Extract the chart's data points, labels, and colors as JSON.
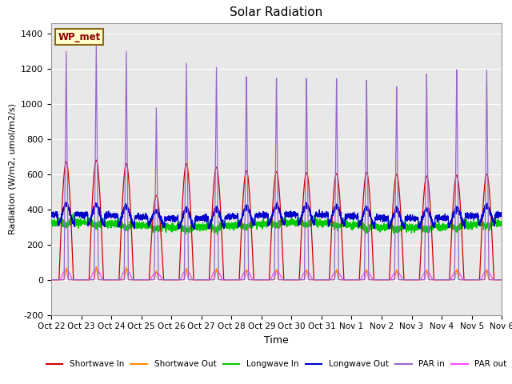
{
  "title": "Solar Radiation",
  "ylabel": "Radiation (W/m2, umol/m2/s)",
  "xlabel": "Time",
  "ylim": [
    -200,
    1460
  ],
  "yticks": [
    -200,
    0,
    200,
    400,
    600,
    800,
    1000,
    1200,
    1400
  ],
  "xtick_labels": [
    "Oct 22",
    "Oct 23",
    "Oct 24",
    "Oct 25",
    "Oct 26",
    "Oct 27",
    "Oct 28",
    "Oct 29",
    "Oct 30",
    "Oct 31",
    "Nov 1",
    "Nov 2",
    "Nov 3",
    "Nov 4",
    "Nov 5",
    "Nov 6"
  ],
  "bg_color": "#e8e8e8",
  "annotation_label": "WP_met",
  "annotation_bg": "#ffffcc",
  "annotation_border": "#8b6914",
  "series": {
    "shortwave_in": {
      "color": "#cc0000",
      "label": "Shortwave In"
    },
    "shortwave_out": {
      "color": "#ff8800",
      "label": "Shortwave Out"
    },
    "longwave_in": {
      "color": "#00cc00",
      "label": "Longwave In"
    },
    "longwave_out": {
      "color": "#0000cc",
      "label": "Longwave Out"
    },
    "par_in": {
      "color": "#9966cc",
      "label": "PAR in"
    },
    "par_out": {
      "color": "#ff44ff",
      "label": "PAR out"
    }
  },
  "n_days": 15,
  "shortwave_in_peaks": [
    670,
    680,
    660,
    480,
    660,
    640,
    620,
    615,
    610,
    605,
    610,
    600,
    590,
    595,
    600
  ],
  "par_in_peaks": [
    1300,
    1340,
    1310,
    990,
    1250,
    1230,
    1180,
    1175,
    1170,
    1165,
    1150,
    1110,
    1180,
    1200,
    1195
  ],
  "shortwave_out_peaks": [
    70,
    75,
    72,
    52,
    68,
    65,
    62,
    61,
    60,
    60,
    60,
    59,
    58,
    59,
    60
  ],
  "par_out_peaks": [
    55,
    60,
    58,
    42,
    55,
    53,
    50,
    49,
    48,
    48,
    47,
    46,
    47,
    50,
    50
  ],
  "longwave_out_base": 360,
  "longwave_in_base": 310
}
